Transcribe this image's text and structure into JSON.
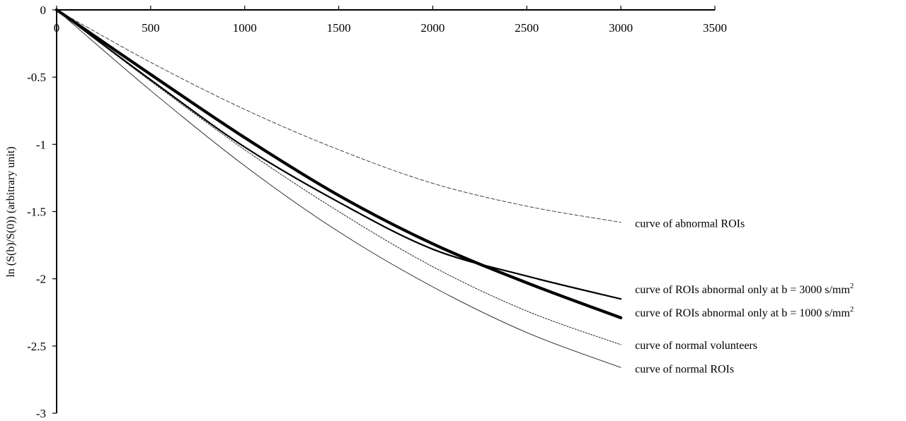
{
  "chart_data": {
    "type": "line",
    "title": "",
    "xlabel": "",
    "ylabel": "ln (S(b)/S(0)) (arbitrary unit)",
    "xlim": [
      0,
      3500
    ],
    "ylim": [
      -3,
      0
    ],
    "xticks": [
      "0",
      "500",
      "1000",
      "1500",
      "2000",
      "2500",
      "3000",
      "3500"
    ],
    "yticks": [
      "0",
      "-0.5",
      "-1",
      "-1.5",
      "-2",
      "-2.5",
      "-3"
    ],
    "grid": false,
    "legend": "none",
    "series": [
      {
        "name": "curve of abnormal ROIs",
        "style": "dashed-thin",
        "x": [
          0,
          500,
          1000,
          1500,
          2000,
          2500,
          3000
        ],
        "y": [
          0,
          -0.39,
          -0.74,
          -1.04,
          -1.29,
          -1.46,
          -1.58
        ]
      },
      {
        "name": "curve of ROIs abnormal only at b = 3000 s/mm",
        "superscript": "2",
        "style": "solid-medium",
        "x": [
          0,
          500,
          1000,
          1500,
          2000,
          2500,
          3000
        ],
        "y": [
          0,
          -0.52,
          -1.02,
          -1.43,
          -1.78,
          -1.98,
          -2.15
        ]
      },
      {
        "name": "curve of ROIs abnormal only at b = 1000 s/mm",
        "superscript": "2",
        "style": "solid-thick",
        "x": [
          0,
          500,
          1000,
          1500,
          2000,
          2500,
          3000
        ],
        "y": [
          0,
          -0.48,
          -0.95,
          -1.38,
          -1.74,
          -2.03,
          -2.29
        ]
      },
      {
        "name": "curve of normal volunteers",
        "style": "dotted",
        "x": [
          0,
          500,
          1000,
          1500,
          2000,
          2500,
          3000
        ],
        "y": [
          0,
          -0.53,
          -1.04,
          -1.5,
          -1.91,
          -2.24,
          -2.49
        ]
      },
      {
        "name": "curve of normal ROIs",
        "style": "solid-thin",
        "x": [
          0,
          500,
          1000,
          1500,
          2000,
          2500,
          3000
        ],
        "y": [
          0,
          -0.6,
          -1.16,
          -1.65,
          -2.06,
          -2.4,
          -2.66
        ]
      }
    ]
  }
}
